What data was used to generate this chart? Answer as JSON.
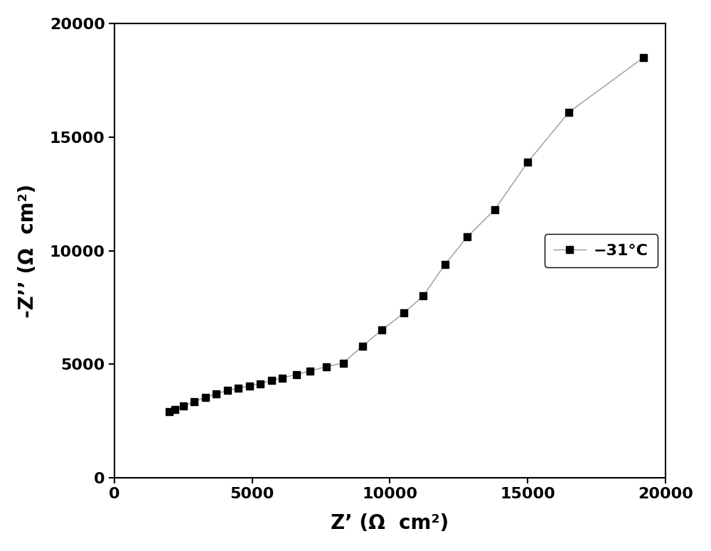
{
  "x": [
    2000,
    2200,
    2500,
    2900,
    3300,
    3700,
    4100,
    4500,
    4900,
    5300,
    5700,
    6100,
    6600,
    7100,
    7700,
    8300,
    9000,
    9700,
    10500,
    11200,
    12000,
    12800,
    13800,
    15000,
    16500,
    19200
  ],
  "y": [
    2900,
    3000,
    3150,
    3350,
    3550,
    3700,
    3850,
    3950,
    4050,
    4150,
    4300,
    4400,
    4550,
    4700,
    4900,
    5050,
    5800,
    6500,
    7250,
    8000,
    9400,
    10600,
    11800,
    13900,
    16100,
    18500
  ],
  "line_color": "#999999",
  "marker_color": "#000000",
  "marker_size": 7,
  "line_width": 1.0,
  "legend_label": "−31°C",
  "xlabel": "Z’ (Ω  cm²)",
  "ylabel": "-Z’’ (Ω  cm²)",
  "xlim": [
    0,
    20000
  ],
  "ylim": [
    0,
    20000
  ],
  "xticks": [
    0,
    5000,
    10000,
    15000,
    20000
  ],
  "yticks": [
    0,
    5000,
    10000,
    15000,
    20000
  ],
  "xlabel_fontsize": 20,
  "ylabel_fontsize": 20,
  "tick_fontsize": 16,
  "legend_fontsize": 16,
  "background_color": "#ffffff",
  "figure_background": "#ffffff"
}
